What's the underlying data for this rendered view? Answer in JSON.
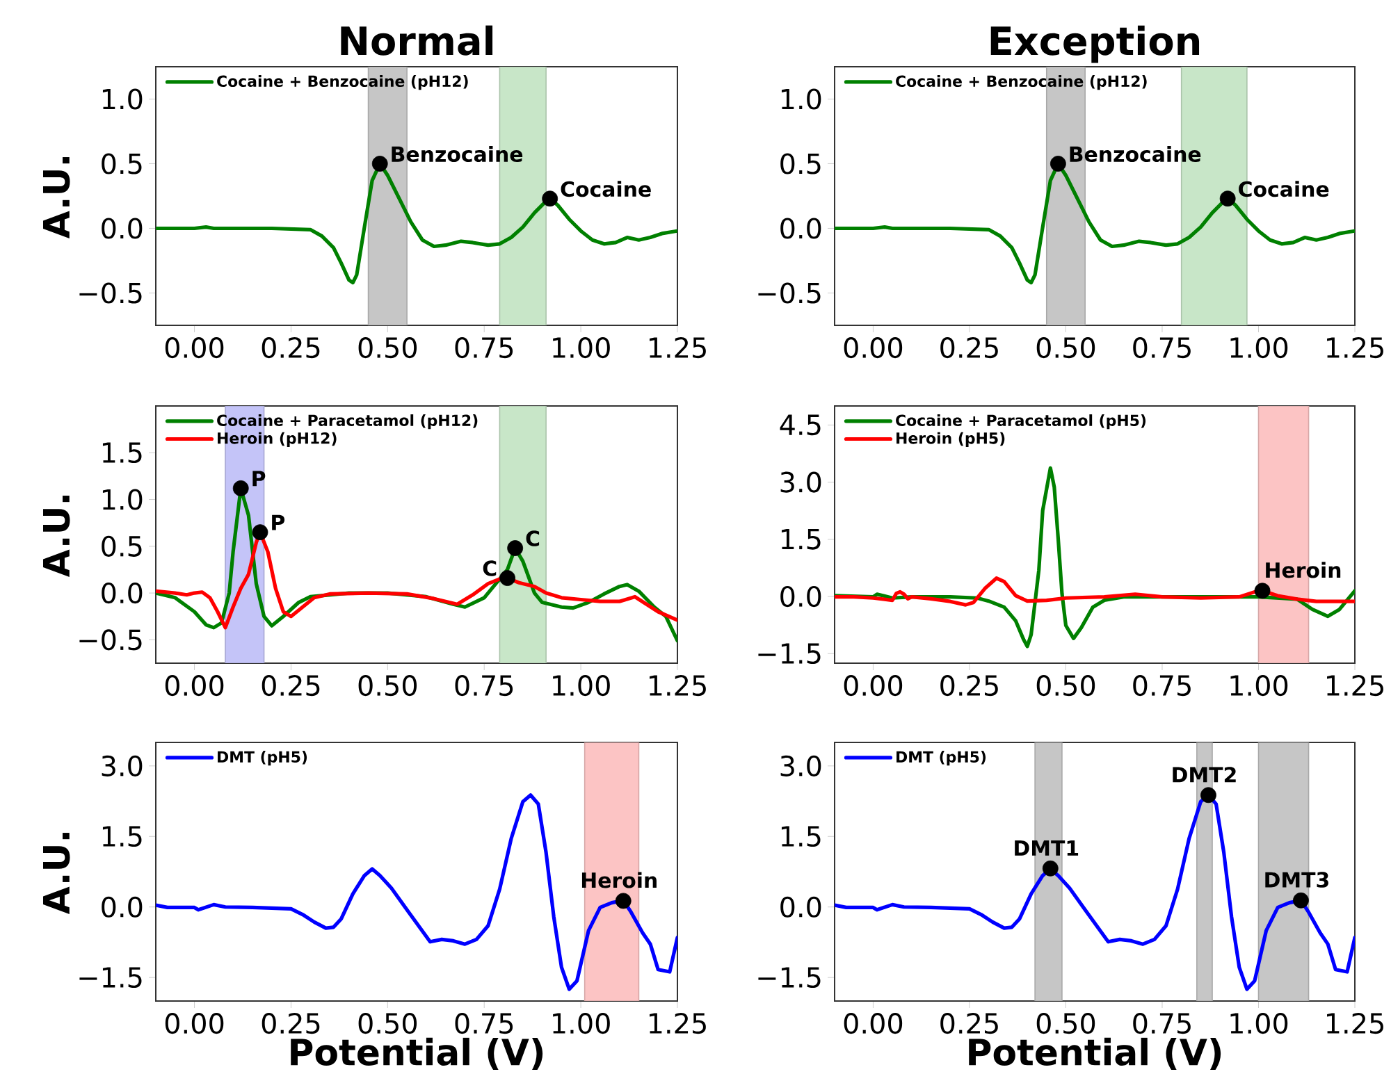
{
  "chart_data": [
    {
      "type": "line",
      "title": "Normal",
      "ylabel": "A.U.",
      "legend": "top left",
      "xlim": [
        -0.1,
        1.25
      ],
      "ylim": [
        -0.75,
        1.25
      ],
      "xticks": [
        {
          "value": 0,
          "label": "0.00"
        },
        {
          "value": 0.25,
          "label": "0.25"
        },
        {
          "value": 0.5,
          "label": "0.50"
        },
        {
          "value": 0.75,
          "label": "0.75"
        },
        {
          "value": 1,
          "label": "1.00"
        },
        {
          "value": 1.25,
          "label": "1.25"
        }
      ],
      "yticks": [
        {
          "value": -0.5,
          "label": "−0.5"
        },
        {
          "value": 0,
          "label": "0.0"
        },
        {
          "value": 0.5,
          "label": "0.5"
        },
        {
          "value": 1,
          "label": "1.0"
        }
      ],
      "bands": [
        {
          "axis": "x",
          "from": 0.45,
          "to": 0.55,
          "color": "#c6c6c6"
        },
        {
          "axis": "x",
          "from": 0.79,
          "to": 0.91,
          "color": "#c8e6c8"
        }
      ],
      "series": [
        {
          "name": "Cocaine + Benzocaine (pH12)",
          "color": "#008000",
          "x": [
            -0.1,
            -0.05,
            0.0,
            0.03,
            0.05,
            0.1,
            0.2,
            0.3,
            0.33,
            0.36,
            0.38,
            0.4,
            0.41,
            0.42,
            0.44,
            0.46,
            0.48,
            0.5,
            0.53,
            0.56,
            0.59,
            0.62,
            0.65,
            0.69,
            0.72,
            0.76,
            0.79,
            0.82,
            0.85,
            0.88,
            0.91,
            0.92,
            0.94,
            0.97,
            1.0,
            1.03,
            1.06,
            1.09,
            1.12,
            1.15,
            1.18,
            1.21,
            1.25
          ],
          "values": [
            0.0,
            0.0,
            0.0,
            0.01,
            0.0,
            0.0,
            0.0,
            -0.01,
            -0.06,
            -0.15,
            -0.27,
            -0.4,
            -0.42,
            -0.36,
            0.01,
            0.37,
            0.5,
            0.41,
            0.23,
            0.05,
            -0.09,
            -0.14,
            -0.13,
            -0.1,
            -0.11,
            -0.13,
            -0.12,
            -0.07,
            0.01,
            0.12,
            0.21,
            0.23,
            0.18,
            0.07,
            -0.02,
            -0.09,
            -0.12,
            -0.11,
            -0.07,
            -0.09,
            -0.07,
            -0.04,
            -0.02
          ]
        }
      ],
      "annotations": [
        {
          "text": "Benzocaine",
          "x": 0.48,
          "y": 0.5
        },
        {
          "text": "Cocaine",
          "x": 0.92,
          "y": 0.23
        }
      ]
    },
    {
      "type": "line",
      "title": "Exception",
      "legend": "top left",
      "xlim": [
        -0.1,
        1.25
      ],
      "ylim": [
        -0.75,
        1.25
      ],
      "xticks": [
        {
          "value": 0,
          "label": "0.00"
        },
        {
          "value": 0.25,
          "label": "0.25"
        },
        {
          "value": 0.5,
          "label": "0.50"
        },
        {
          "value": 0.75,
          "label": "0.75"
        },
        {
          "value": 1,
          "label": "1.00"
        },
        {
          "value": 1.25,
          "label": "1.25"
        }
      ],
      "yticks": [
        {
          "value": -0.5,
          "label": "−0.5"
        },
        {
          "value": 0,
          "label": "0.0"
        },
        {
          "value": 0.5,
          "label": "0.5"
        },
        {
          "value": 1,
          "label": "1.0"
        }
      ],
      "bands": [
        {
          "axis": "x",
          "from": 0.45,
          "to": 0.55,
          "color": "#c6c6c6"
        },
        {
          "axis": "x",
          "from": 0.8,
          "to": 0.97,
          "color": "#c8e6c8"
        }
      ],
      "series": [
        {
          "name": "Cocaine + Benzocaine (pH12)",
          "color": "#008000",
          "x": [
            -0.1,
            -0.05,
            0.0,
            0.03,
            0.05,
            0.1,
            0.2,
            0.3,
            0.33,
            0.36,
            0.38,
            0.4,
            0.41,
            0.42,
            0.44,
            0.46,
            0.48,
            0.5,
            0.53,
            0.56,
            0.59,
            0.62,
            0.65,
            0.69,
            0.72,
            0.76,
            0.79,
            0.82,
            0.85,
            0.88,
            0.91,
            0.92,
            0.94,
            0.97,
            1.0,
            1.03,
            1.06,
            1.09,
            1.12,
            1.15,
            1.18,
            1.21,
            1.25
          ],
          "values": [
            0.0,
            0.0,
            0.0,
            0.01,
            0.0,
            0.0,
            0.0,
            -0.01,
            -0.06,
            -0.15,
            -0.27,
            -0.4,
            -0.42,
            -0.36,
            0.01,
            0.37,
            0.5,
            0.41,
            0.23,
            0.05,
            -0.09,
            -0.14,
            -0.13,
            -0.1,
            -0.11,
            -0.13,
            -0.12,
            -0.07,
            0.01,
            0.12,
            0.21,
            0.23,
            0.18,
            0.07,
            -0.02,
            -0.09,
            -0.12,
            -0.11,
            -0.07,
            -0.09,
            -0.07,
            -0.04,
            -0.02
          ]
        }
      ],
      "annotations": [
        {
          "text": "Benzocaine",
          "x": 0.48,
          "y": 0.5
        },
        {
          "text": "Cocaine",
          "x": 0.92,
          "y": 0.23
        }
      ]
    },
    {
      "type": "line",
      "ylabel": "A.U.",
      "legend": "top left",
      "xlim": [
        -0.1,
        1.25
      ],
      "ylim": [
        -0.75,
        2.0
      ],
      "xticks": [
        {
          "value": 0,
          "label": "0.00"
        },
        {
          "value": 0.25,
          "label": "0.25"
        },
        {
          "value": 0.5,
          "label": "0.50"
        },
        {
          "value": 0.75,
          "label": "0.75"
        },
        {
          "value": 1,
          "label": "1.00"
        },
        {
          "value": 1.25,
          "label": "1.25"
        }
      ],
      "yticks": [
        {
          "value": -0.5,
          "label": "−0.5"
        },
        {
          "value": 0,
          "label": "0.0"
        },
        {
          "value": 0.5,
          "label": "0.5"
        },
        {
          "value": 1,
          "label": "1.0"
        },
        {
          "value": 1.5,
          "label": "1.5"
        }
      ],
      "bands": [
        {
          "axis": "x",
          "from": 0.08,
          "to": 0.18,
          "color": "#c4c4f8"
        },
        {
          "axis": "x",
          "from": 0.79,
          "to": 0.91,
          "color": "#c8e6c8"
        }
      ],
      "series": [
        {
          "name": "Cocaine + Paracetamol (pH12)",
          "color": "#008000",
          "x": [
            -0.1,
            -0.05,
            0.0,
            0.03,
            0.05,
            0.07,
            0.09,
            0.1,
            0.12,
            0.14,
            0.16,
            0.18,
            0.2,
            0.23,
            0.27,
            0.3,
            0.4,
            0.5,
            0.6,
            0.67,
            0.7,
            0.75,
            0.78,
            0.81,
            0.83,
            0.85,
            0.88,
            0.9,
            0.95,
            0.98,
            1.02,
            1.06,
            1.1,
            1.12,
            1.15,
            1.19,
            1.22,
            1.25
          ],
          "values": [
            0.0,
            -0.05,
            -0.2,
            -0.34,
            -0.37,
            -0.32,
            0.0,
            0.44,
            1.12,
            0.83,
            0.1,
            -0.25,
            -0.35,
            -0.25,
            -0.1,
            -0.04,
            0.0,
            0.0,
            -0.04,
            -0.12,
            -0.15,
            -0.05,
            0.1,
            0.25,
            0.48,
            0.34,
            0.0,
            -0.1,
            -0.15,
            -0.16,
            -0.1,
            -0.01,
            0.07,
            0.09,
            0.02,
            -0.15,
            -0.25,
            -0.51
          ]
        },
        {
          "name": "Heroin (pH12)",
          "color": "#ff0000",
          "x": [
            -0.1,
            -0.05,
            -0.02,
            0.0,
            0.02,
            0.04,
            0.06,
            0.08,
            0.1,
            0.12,
            0.14,
            0.16,
            0.17,
            0.19,
            0.21,
            0.23,
            0.25,
            0.28,
            0.31,
            0.35,
            0.45,
            0.55,
            0.62,
            0.68,
            0.72,
            0.76,
            0.79,
            0.81,
            0.84,
            0.88,
            0.91,
            0.95,
            1.0,
            1.05,
            1.1,
            1.14,
            1.17,
            1.2,
            1.25
          ],
          "values": [
            0.02,
            0.0,
            -0.02,
            0.0,
            0.01,
            -0.05,
            -0.2,
            -0.37,
            -0.15,
            0.05,
            0.2,
            0.54,
            0.65,
            0.44,
            0.05,
            -0.2,
            -0.25,
            -0.15,
            -0.05,
            -0.01,
            0.0,
            -0.01,
            -0.06,
            -0.12,
            -0.02,
            0.1,
            0.15,
            0.16,
            0.11,
            0.07,
            0.0,
            -0.05,
            -0.07,
            -0.09,
            -0.09,
            -0.04,
            -0.12,
            -0.2,
            -0.29
          ]
        }
      ],
      "annotations": [
        {
          "text": "P",
          "x": 0.12,
          "y": 1.12
        },
        {
          "text": "P",
          "x": 0.17,
          "y": 0.65
        },
        {
          "text": "C",
          "x": 0.83,
          "y": 0.48
        },
        {
          "text": "C",
          "x": 0.81,
          "y": 0.16
        }
      ]
    },
    {
      "type": "line",
      "legend": "top left",
      "xlim": [
        -0.1,
        1.25
      ],
      "ylim": [
        -1.75,
        5.0
      ],
      "xticks": [
        {
          "value": 0,
          "label": "0.00"
        },
        {
          "value": 0.25,
          "label": "0.25"
        },
        {
          "value": 0.5,
          "label": "0.50"
        },
        {
          "value": 0.75,
          "label": "0.75"
        },
        {
          "value": 1,
          "label": "1.00"
        },
        {
          "value": 1.25,
          "label": "1.25"
        }
      ],
      "yticks": [
        {
          "value": -1.5,
          "label": "−1.5"
        },
        {
          "value": 0,
          "label": "0.0"
        },
        {
          "value": 1.5,
          "label": "1.5"
        },
        {
          "value": 3,
          "label": "3.0"
        },
        {
          "value": 4.5,
          "label": "4.5"
        }
      ],
      "bands": [
        {
          "axis": "x",
          "from": 1.0,
          "to": 1.13,
          "color": "#fcc4c4"
        }
      ],
      "series": [
        {
          "name": "Cocaine + Paracetamol (pH5)",
          "color": "#008000",
          "x": [
            -0.1,
            0.0,
            0.01,
            0.05,
            0.1,
            0.2,
            0.27,
            0.3,
            0.34,
            0.37,
            0.39,
            0.4,
            0.41,
            0.43,
            0.44,
            0.46,
            0.47,
            0.48,
            0.49,
            0.5,
            0.52,
            0.54,
            0.57,
            0.6,
            0.65,
            0.75,
            0.9,
            1.0,
            1.1,
            1.14,
            1.18,
            1.21,
            1.25
          ],
          "values": [
            0.02,
            -0.01,
            0.06,
            -0.04,
            -0.01,
            -0.01,
            -0.04,
            -0.12,
            -0.28,
            -0.64,
            -1.12,
            -1.31,
            -1.0,
            0.69,
            2.26,
            3.37,
            2.87,
            1.54,
            0.08,
            -0.76,
            -1.1,
            -0.82,
            -0.28,
            -0.1,
            -0.01,
            -0.01,
            -0.01,
            -0.01,
            -0.07,
            -0.34,
            -0.52,
            -0.34,
            0.15
          ]
        },
        {
          "name": "Heroin (pH5)",
          "color": "#ff0000",
          "x": [
            -0.1,
            -0.05,
            0.0,
            0.05,
            0.06,
            0.07,
            0.08,
            0.09,
            0.1,
            0.15,
            0.2,
            0.24,
            0.26,
            0.29,
            0.32,
            0.34,
            0.37,
            0.4,
            0.45,
            0.5,
            0.6,
            0.68,
            0.75,
            0.85,
            0.95,
            1.0,
            1.01,
            1.05,
            1.1,
            1.15,
            1.25
          ],
          "values": [
            -0.01,
            -0.01,
            -0.04,
            -0.1,
            0.08,
            0.12,
            0.06,
            -0.06,
            -0.01,
            -0.06,
            -0.13,
            -0.22,
            -0.16,
            0.21,
            0.48,
            0.39,
            0.02,
            -0.12,
            -0.1,
            -0.04,
            -0.01,
            0.06,
            -0.01,
            -0.04,
            -0.01,
            0.15,
            0.15,
            0.02,
            -0.07,
            -0.13,
            -0.13
          ]
        }
      ],
      "annotations": [
        {
          "text": "Heroin",
          "x": 1.01,
          "y": 0.15
        }
      ]
    },
    {
      "type": "line",
      "xlabel": "Potential (V)",
      "ylabel": "A.U.",
      "legend": "top left",
      "xlim": [
        -0.1,
        1.25
      ],
      "ylim": [
        -2.0,
        3.5
      ],
      "xticks": [
        {
          "value": 0,
          "label": "0.00"
        },
        {
          "value": 0.25,
          "label": "0.25"
        },
        {
          "value": 0.5,
          "label": "0.50"
        },
        {
          "value": 0.75,
          "label": "0.75"
        },
        {
          "value": 1,
          "label": "1.00"
        },
        {
          "value": 1.25,
          "label": "1.25"
        }
      ],
      "yticks": [
        {
          "value": -1.5,
          "label": "−1.5"
        },
        {
          "value": 0,
          "label": "0.0"
        },
        {
          "value": 1.5,
          "label": "1.5"
        },
        {
          "value": 3,
          "label": "3.0"
        }
      ],
      "bands": [
        {
          "axis": "x",
          "from": 1.01,
          "to": 1.15,
          "color": "#fcc4c4"
        }
      ],
      "series": [
        {
          "name": "DMT (pH5)",
          "color": "#0000ff",
          "x": [
            -0.1,
            -0.07,
            0.0,
            0.01,
            0.05,
            0.08,
            0.15,
            0.25,
            0.28,
            0.31,
            0.34,
            0.36,
            0.38,
            0.41,
            0.44,
            0.46,
            0.48,
            0.51,
            0.55,
            0.58,
            0.61,
            0.64,
            0.67,
            0.7,
            0.73,
            0.76,
            0.79,
            0.82,
            0.85,
            0.87,
            0.89,
            0.91,
            0.93,
            0.95,
            0.97,
            0.99,
            1.02,
            1.05,
            1.08,
            1.11,
            1.13,
            1.16,
            1.18,
            1.2,
            1.23,
            1.25
          ],
          "values": [
            0.04,
            -0.01,
            -0.01,
            -0.06,
            0.05,
            0.0,
            -0.01,
            -0.04,
            -0.16,
            -0.32,
            -0.45,
            -0.43,
            -0.25,
            0.28,
            0.67,
            0.81,
            0.67,
            0.4,
            -0.06,
            -0.4,
            -0.74,
            -0.69,
            -0.72,
            -0.79,
            -0.69,
            -0.4,
            0.38,
            1.46,
            2.24,
            2.38,
            2.19,
            1.16,
            -0.21,
            -1.28,
            -1.75,
            -1.57,
            -0.5,
            -0.01,
            0.09,
            0.14,
            -0.11,
            -0.55,
            -0.79,
            -1.33,
            -1.38,
            -0.65
          ]
        }
      ],
      "annotations": [
        {
          "text": "Heroin",
          "x": 1.11,
          "y": 0.13
        }
      ]
    },
    {
      "type": "line",
      "xlabel": "Potential (V)",
      "legend": "top left",
      "xlim": [
        -0.1,
        1.25
      ],
      "ylim": [
        -2.0,
        3.5
      ],
      "xticks": [
        {
          "value": 0,
          "label": "0.00"
        },
        {
          "value": 0.25,
          "label": "0.25"
        },
        {
          "value": 0.5,
          "label": "0.50"
        },
        {
          "value": 0.75,
          "label": "0.75"
        },
        {
          "value": 1,
          "label": "1.00"
        },
        {
          "value": 1.25,
          "label": "1.25"
        }
      ],
      "yticks": [
        {
          "value": -1.5,
          "label": "−1.5"
        },
        {
          "value": 0,
          "label": "0.0"
        },
        {
          "value": 1.5,
          "label": "1.5"
        },
        {
          "value": 3,
          "label": "3.0"
        }
      ],
      "bands": [
        {
          "axis": "x",
          "from": 0.42,
          "to": 0.49,
          "color": "#c6c6c6"
        },
        {
          "axis": "x",
          "from": 0.84,
          "to": 0.88,
          "color": "#c6c6c6"
        },
        {
          "axis": "x",
          "from": 1.0,
          "to": 1.13,
          "color": "#c6c6c6"
        }
      ],
      "series": [
        {
          "name": "DMT (pH5)",
          "color": "#0000ff",
          "x": [
            -0.1,
            -0.07,
            0.0,
            0.01,
            0.05,
            0.08,
            0.15,
            0.25,
            0.28,
            0.31,
            0.34,
            0.36,
            0.38,
            0.41,
            0.44,
            0.46,
            0.48,
            0.51,
            0.55,
            0.58,
            0.61,
            0.64,
            0.67,
            0.7,
            0.73,
            0.76,
            0.79,
            0.82,
            0.85,
            0.87,
            0.89,
            0.91,
            0.93,
            0.95,
            0.97,
            0.99,
            1.02,
            1.05,
            1.08,
            1.11,
            1.13,
            1.16,
            1.18,
            1.2,
            1.23,
            1.25
          ],
          "values": [
            0.04,
            -0.01,
            -0.01,
            -0.06,
            0.05,
            0.0,
            -0.01,
            -0.04,
            -0.16,
            -0.32,
            -0.45,
            -0.43,
            -0.25,
            0.28,
            0.67,
            0.81,
            0.67,
            0.4,
            -0.06,
            -0.4,
            -0.74,
            -0.69,
            -0.72,
            -0.79,
            -0.69,
            -0.4,
            0.38,
            1.46,
            2.24,
            2.38,
            2.19,
            1.16,
            -0.21,
            -1.28,
            -1.75,
            -1.57,
            -0.5,
            -0.01,
            0.09,
            0.14,
            -0.11,
            -0.55,
            -0.79,
            -1.33,
            -1.38,
            -0.65
          ]
        }
      ],
      "annotations": [
        {
          "text": "DMT1",
          "x": 0.46,
          "y": 0.82
        },
        {
          "text": "DMT2",
          "x": 0.87,
          "y": 2.38
        },
        {
          "text": "DMT3",
          "x": 1.11,
          "y": 0.14
        }
      ]
    }
  ]
}
